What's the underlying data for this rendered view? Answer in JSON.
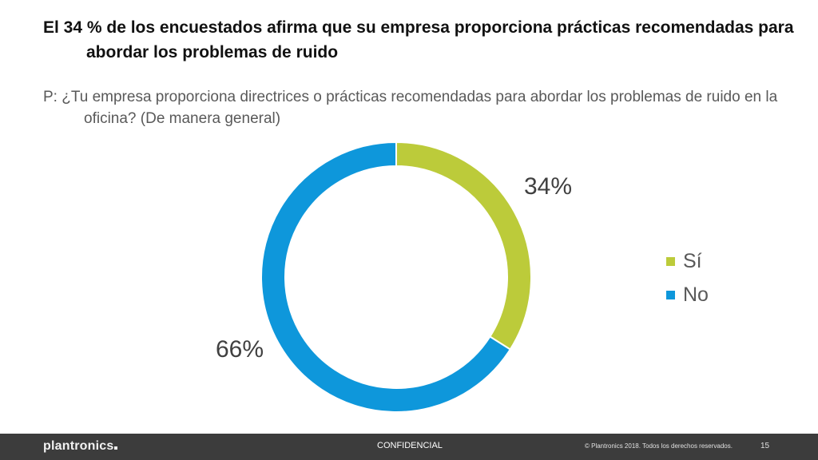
{
  "slide": {
    "title": "El 34 % de los encuestados afirma que su empresa proporciona prácticas recomendadas para abordar los problemas de ruido",
    "question": "P: ¿Tu empresa proporciona directrices o prácticas recomendadas para abordar los problemas de ruido en la oficina? (De manera general)"
  },
  "chart_data": {
    "type": "pie",
    "donut": true,
    "categories": [
      "Sí",
      "No"
    ],
    "values": [
      34,
      66
    ],
    "data_labels": [
      "34%",
      "66%"
    ],
    "colors": [
      "#bccb3a",
      "#0e97db"
    ],
    "title": "",
    "legend_position": "right"
  },
  "footer": {
    "logo": "plantronics",
    "confidential": "CONFIDENCIAL",
    "copyright": "© Plantronics 2018. Todos los derechos reservados.",
    "page_number": "15"
  }
}
